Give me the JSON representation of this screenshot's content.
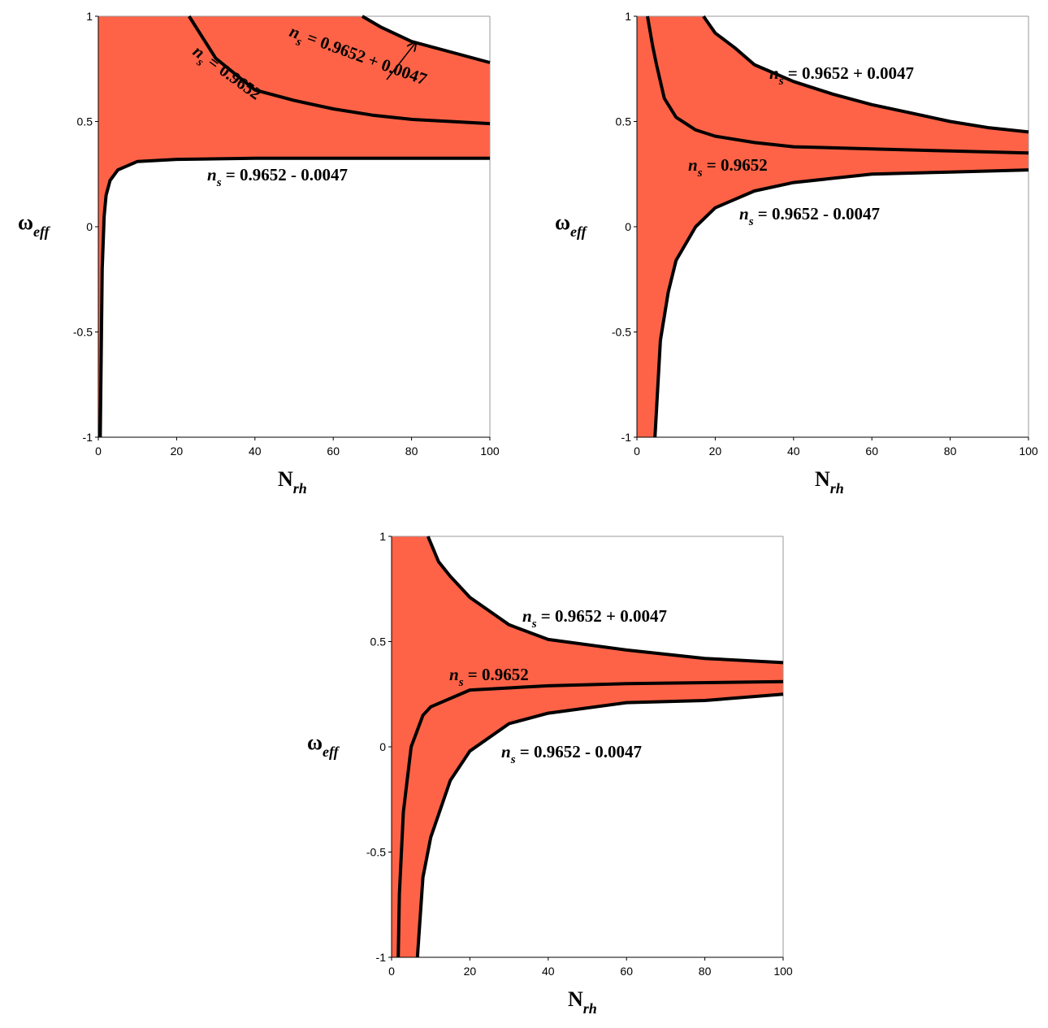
{
  "chart_data": [
    {
      "type": "line",
      "x_label": {
        "text": "N",
        "subscript": "rh"
      },
      "y_label": {
        "text": "ω",
        "subscript": "eff"
      },
      "xlim": [
        0,
        100
      ],
      "ylim": [
        -1,
        1
      ],
      "xticks": [
        0,
        20,
        40,
        60,
        80,
        100
      ],
      "yticks": [
        -1,
        -0.5,
        0,
        0.5,
        1
      ],
      "fill_color": "#ff6347",
      "color": "#000000",
      "series": [
        {
          "label": {
            "symbol": "n",
            "subscript": "s",
            "text": " = 0.9652 + 0.0047"
          },
          "x": [
            67.4,
            72,
            80,
            90,
            100
          ],
          "values": [
            1,
            0.95,
            0.88,
            0.83,
            0.78
          ]
        },
        {
          "label": {
            "symbol": "n",
            "subscript": "s",
            "text": " = 0.9652"
          },
          "x": [
            23.2,
            30,
            40,
            50,
            60,
            70,
            80,
            90,
            100
          ],
          "values": [
            1,
            0.8,
            0.65,
            0.6,
            0.56,
            0.53,
            0.51,
            0.5,
            0.49
          ]
        },
        {
          "label": {
            "symbol": "n",
            "subscript": "s",
            "text": " = 0.9652 - 0.0047"
          },
          "x": [
            0.5,
            0.8,
            1,
            1.5,
            2,
            3,
            5,
            10,
            20,
            40,
            60,
            100
          ],
          "values": [
            -1,
            -0.5,
            -0.2,
            0.05,
            0.15,
            0.22,
            0.27,
            0.31,
            0.32,
            0.325,
            0.325,
            0.325
          ]
        }
      ]
    },
    {
      "type": "line",
      "x_label": {
        "text": "N",
        "subscript": "rh"
      },
      "y_label": {
        "text": "ω",
        "subscript": "eff"
      },
      "xlim": [
        0,
        100
      ],
      "ylim": [
        -1,
        1
      ],
      "xticks": [
        0,
        20,
        40,
        60,
        80,
        100
      ],
      "yticks": [
        -1,
        -0.5,
        0,
        0.5,
        1
      ],
      "fill_color": "#ff6347",
      "color": "#000000",
      "series": [
        {
          "label": {
            "symbol": "n",
            "subscript": "s",
            "text": " = 0.9652 + 0.0047"
          },
          "x": [
            17,
            20,
            25,
            30,
            40,
            50,
            60,
            70,
            80,
            90,
            100
          ],
          "values": [
            1,
            0.92,
            0.85,
            0.77,
            0.69,
            0.63,
            0.58,
            0.54,
            0.5,
            0.47,
            0.45
          ]
        },
        {
          "label": {
            "symbol": "n",
            "subscript": "s",
            "text": " = 0.9652"
          },
          "x": [
            2.7,
            4,
            5,
            7,
            10,
            15,
            20,
            30,
            40,
            60,
            80,
            100
          ],
          "values": [
            1,
            0.86,
            0.77,
            0.61,
            0.52,
            0.46,
            0.43,
            0.4,
            0.38,
            0.37,
            0.36,
            0.35
          ]
        },
        {
          "label": {
            "symbol": "n",
            "subscript": "s",
            "text": " = 0.9652 - 0.0047"
          },
          "x": [
            4.6,
            6,
            8,
            10,
            15,
            20,
            30,
            40,
            60,
            80,
            100
          ],
          "values": [
            -1,
            -0.54,
            -0.31,
            -0.16,
            0,
            0.09,
            0.17,
            0.21,
            0.25,
            0.26,
            0.27
          ]
        }
      ]
    },
    {
      "type": "line",
      "x_label": {
        "text": "N",
        "subscript": "rh"
      },
      "y_label": {
        "text": "ω",
        "subscript": "eff"
      },
      "xlim": [
        0,
        100
      ],
      "ylim": [
        -1,
        1
      ],
      "xticks": [
        0,
        20,
        40,
        60,
        80,
        100
      ],
      "yticks": [
        -1,
        -0.5,
        0,
        0.5,
        1
      ],
      "fill_color": "#ff6347",
      "color": "#000000",
      "series": [
        {
          "label": {
            "symbol": "n",
            "subscript": "s",
            "text": " = 0.9652 + 0.0047"
          },
          "x": [
            9.3,
            12,
            15,
            20,
            30,
            40,
            60,
            80,
            100
          ],
          "values": [
            1,
            0.88,
            0.81,
            0.71,
            0.58,
            0.51,
            0.46,
            0.42,
            0.4
          ]
        },
        {
          "label": {
            "symbol": "n",
            "subscript": "s",
            "text": " = 0.9652"
          },
          "x": [
            1.7,
            2,
            3,
            5,
            8,
            10,
            20,
            40,
            60,
            100
          ],
          "values": [
            -1,
            -0.7,
            -0.31,
            0,
            0.15,
            0.19,
            0.27,
            0.29,
            0.3,
            0.31
          ]
        },
        {
          "label": {
            "symbol": "n",
            "subscript": "s",
            "text": " = 0.9652 - 0.0047"
          },
          "x": [
            6.6,
            8,
            10,
            15,
            20,
            30,
            40,
            60,
            80,
            100
          ],
          "values": [
            -1,
            -0.62,
            -0.43,
            -0.16,
            -0.02,
            0.11,
            0.16,
            0.21,
            0.22,
            0.25
          ]
        }
      ]
    }
  ]
}
